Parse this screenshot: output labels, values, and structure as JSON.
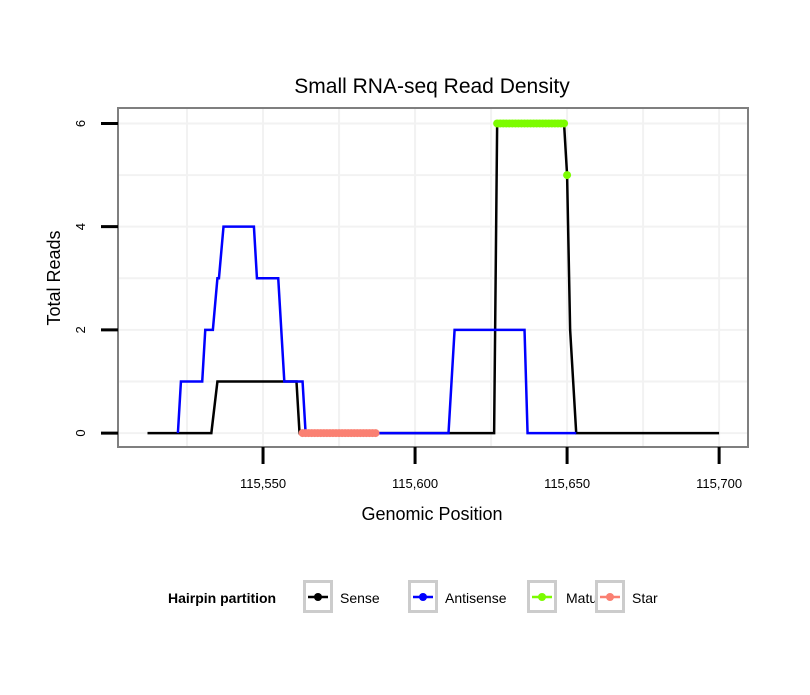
{
  "chart_data": {
    "type": "line",
    "title": "Small RNA-seq Read Density",
    "xlabel": "Genomic Position",
    "ylabel": "Total Reads",
    "xlim": [
      115502.3,
      115709.5
    ],
    "ylim": [
      -0.27,
      6.3
    ],
    "x_ticks": [
      115550,
      115600,
      115650,
      115700
    ],
    "x_tick_labels": [
      "115,550",
      "115,600",
      "115,650",
      "115,700"
    ],
    "y_ticks": [
      0,
      2,
      4,
      6
    ],
    "y_tick_labels": [
      "0",
      "2",
      "4",
      "6"
    ],
    "grid": true,
    "legend": {
      "title": "Hairpin partition",
      "placement": "bottom",
      "entries": [
        "Sense",
        "Antisense",
        "Mature",
        "Star"
      ]
    },
    "series": [
      {
        "name": "Sense",
        "color": "#000000",
        "style": "line",
        "points": [
          [
            115512,
            0
          ],
          [
            115533,
            0
          ],
          [
            115535,
            1
          ],
          [
            115561,
            1
          ],
          [
            115562,
            0
          ],
          [
            115626,
            0
          ],
          [
            115627,
            6
          ],
          [
            115649,
            6
          ],
          [
            115650,
            5
          ],
          [
            115651,
            2
          ],
          [
            115653,
            0
          ],
          [
            115700,
            0
          ]
        ]
      },
      {
        "name": "Antisense",
        "color": "#0000ff",
        "style": "line",
        "points": [
          [
            115522,
            0
          ],
          [
            115523,
            1
          ],
          [
            115530,
            1
          ],
          [
            115531,
            2
          ],
          [
            115533.5,
            2
          ],
          [
            115535,
            3
          ],
          [
            115535.5,
            3
          ],
          [
            115537,
            4
          ],
          [
            115547,
            4
          ],
          [
            115548,
            3
          ],
          [
            115555,
            3
          ],
          [
            115557,
            1
          ],
          [
            115563,
            1
          ],
          [
            115564,
            0
          ],
          [
            115611,
            0
          ],
          [
            115613,
            2
          ],
          [
            115636,
            2
          ],
          [
            115637,
            0
          ],
          [
            115653,
            0
          ]
        ]
      },
      {
        "name": "Mature",
        "color": "#7cfc00",
        "style": "points",
        "points": [
          [
            115627,
            6
          ],
          [
            115628,
            6
          ],
          [
            115629,
            6
          ],
          [
            115630,
            6
          ],
          [
            115631,
            6
          ],
          [
            115632,
            6
          ],
          [
            115633,
            6
          ],
          [
            115634,
            6
          ],
          [
            115635,
            6
          ],
          [
            115636,
            6
          ],
          [
            115637,
            6
          ],
          [
            115638,
            6
          ],
          [
            115639,
            6
          ],
          [
            115640,
            6
          ],
          [
            115641,
            6
          ],
          [
            115642,
            6
          ],
          [
            115643,
            6
          ],
          [
            115644,
            6
          ],
          [
            115645,
            6
          ],
          [
            115646,
            6
          ],
          [
            115647,
            6
          ],
          [
            115648,
            6
          ],
          [
            115649,
            6
          ],
          [
            115650,
            5
          ]
        ]
      },
      {
        "name": "Star",
        "color": "#fa8072",
        "style": "points",
        "points": [
          [
            115563,
            0
          ],
          [
            115564,
            0
          ],
          [
            115565,
            0
          ],
          [
            115566,
            0
          ],
          [
            115567,
            0
          ],
          [
            115568,
            0
          ],
          [
            115569,
            0
          ],
          [
            115570,
            0
          ],
          [
            115571,
            0
          ],
          [
            115572,
            0
          ],
          [
            115573,
            0
          ],
          [
            115574,
            0
          ],
          [
            115575,
            0
          ],
          [
            115576,
            0
          ],
          [
            115577,
            0
          ],
          [
            115578,
            0
          ],
          [
            115579,
            0
          ],
          [
            115580,
            0
          ],
          [
            115581,
            0
          ],
          [
            115582,
            0
          ],
          [
            115583,
            0
          ],
          [
            115584,
            0
          ],
          [
            115585,
            0
          ],
          [
            115586,
            0
          ],
          [
            115587,
            0
          ]
        ]
      }
    ]
  }
}
